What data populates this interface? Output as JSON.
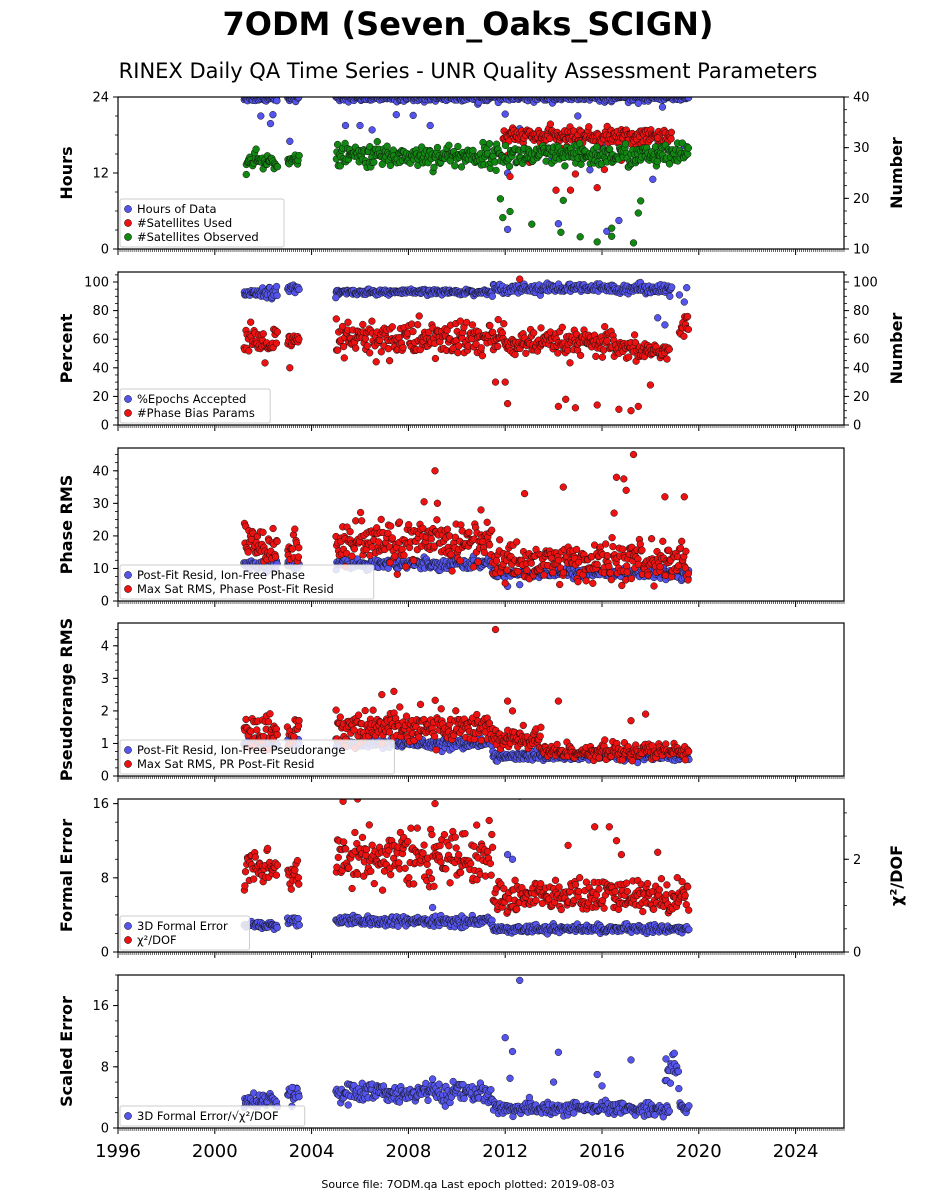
{
  "title": "7ODM (Seven_Oaks_SCIGN)",
  "subtitle": "RINEX Daily QA Time Series - UNR Quality Assessment Parameters",
  "footer": "Source file: 7ODM.qa Last epoch plotted: 2019-08-03",
  "colors": {
    "blue": "#5555ee",
    "red": "#ee1111",
    "green": "#118811",
    "edge": "#111111"
  },
  "x_axis": {
    "range": [
      1996,
      2026
    ],
    "ticks": [
      1996,
      2000,
      2004,
      2008,
      2012,
      2016,
      2020,
      2024
    ],
    "tick_labels": [
      "1996",
      "2000",
      "2004",
      "2008",
      "2012",
      "2016",
      "2020",
      "2024"
    ]
  },
  "chart_data": [
    {
      "type": "scatter",
      "ylabel": "Hours",
      "ylabel_right": "Number",
      "ylim": [
        0,
        24
      ],
      "yticks": [
        0,
        12,
        24
      ],
      "ytick_labels": [
        "0",
        "12",
        "24"
      ],
      "ylim_right": [
        10,
        40
      ],
      "yticks_right": [
        10,
        20,
        30,
        40
      ],
      "ytick_labels_right": [
        "10",
        "20",
        "30",
        "40"
      ],
      "legend_position": "lower-left",
      "series": [
        {
          "name": "Hours of Data",
          "color": "blue",
          "axis": "left",
          "segments": [
            [
              2001.2,
              2002.6,
              23.9,
              0.3
            ],
            [
              2003.0,
              2003.5,
              24.0,
              0.3
            ],
            [
              2005.0,
              2019.6,
              23.9,
              0.3
            ]
          ],
          "points": [
            [
              2001.9,
              21.0
            ],
            [
              2002.3,
              19.8
            ],
            [
              2002.4,
              21.2
            ],
            [
              2003.1,
              17.0
            ],
            [
              2005.4,
              19.5
            ],
            [
              2006.0,
              19.5
            ],
            [
              2006.5,
              18.8
            ],
            [
              2006.8,
              15.7
            ],
            [
              2007.5,
              21.2
            ],
            [
              2008.2,
              21.1
            ],
            [
              2008.9,
              19.5
            ],
            [
              2011.7,
              15.2
            ],
            [
              2012.0,
              21.3
            ],
            [
              2012.1,
              12.0
            ],
            [
              2012.1,
              3.1
            ],
            [
              2012.3,
              18.5
            ],
            [
              2012.6,
              19.0
            ],
            [
              2013.9,
              14.0
            ],
            [
              2014.2,
              4.0
            ],
            [
              2014.6,
              18.5
            ],
            [
              2015.0,
              21.0
            ],
            [
              2015.5,
              12.5
            ],
            [
              2016.0,
              16.2
            ],
            [
              2016.2,
              2.8
            ],
            [
              2016.7,
              4.5
            ],
            [
              2017.5,
              23.0
            ],
            [
              2018.1,
              11.0
            ],
            [
              2018.5,
              22.4
            ],
            [
              2019.4,
              16.3
            ]
          ]
        },
        {
          "name": "#Satellites Used",
          "color": "red",
          "axis": "right",
          "segments": [
            [
              2011.9,
              2018.9,
              32.2,
              0.8
            ]
          ],
          "points": [
            [
              2012.1,
              28.5
            ],
            [
              2012.2,
              24.3
            ],
            [
              2013.0,
              27.1
            ],
            [
              2014.1,
              21.6
            ],
            [
              2014.3,
              29.9
            ],
            [
              2014.7,
              21.6
            ],
            [
              2014.9,
              24.8
            ],
            [
              2015.8,
              22.1
            ],
            [
              2016.1,
              25.7
            ],
            [
              2016.3,
              27.8
            ],
            [
              2016.8,
              27.5
            ],
            [
              2017.4,
              30.1
            ],
            [
              2018.3,
              31.9
            ]
          ]
        },
        {
          "name": "#Satellites Observed",
          "color": "green",
          "axis": "right",
          "segments": [
            [
              2001.3,
              2002.6,
              27.2,
              0.8
            ],
            [
              2003.0,
              2003.5,
              27.6,
              0.4
            ],
            [
              2005.0,
              2019.6,
              28.4,
              1.1
            ]
          ],
          "points": [
            [
              2001.3,
              24.7
            ],
            [
              2011.8,
              19.9
            ],
            [
              2011.9,
              16.2
            ],
            [
              2012.2,
              17.4
            ],
            [
              2013.1,
              14.9
            ],
            [
              2014.3,
              13.3
            ],
            [
              2014.4,
              19.6
            ],
            [
              2015.1,
              12.4
            ],
            [
              2015.8,
              11.4
            ],
            [
              2016.4,
              12.5
            ],
            [
              2016.4,
              14.1
            ],
            [
              2017.3,
              11.2
            ],
            [
              2017.5,
              17.1
            ],
            [
              2017.6,
              19.5
            ]
          ]
        }
      ]
    },
    {
      "type": "scatter",
      "ylabel": "Percent",
      "ylabel_right": "Number",
      "ylim": [
        0,
        107
      ],
      "yticks": [
        0,
        20,
        40,
        60,
        80,
        100
      ],
      "ytick_labels": [
        "0",
        "20",
        "40",
        "60",
        "80",
        "100"
      ],
      "ylim_right": [
        0,
        107
      ],
      "yticks_right": [
        0,
        20,
        40,
        60,
        80,
        100
      ],
      "ytick_labels_right": [
        "0",
        "20",
        "40",
        "60",
        "80",
        "100"
      ],
      "legend_position": "lower-left",
      "series": [
        {
          "name": "%Epochs Accepted",
          "color": "blue",
          "axis": "left",
          "segments": [
            [
              2001.2,
              2002.6,
              93,
              1.8
            ],
            [
              2003.0,
              2003.5,
              95,
              1.5
            ],
            [
              2005.0,
              2011.5,
              93,
              0.9
            ],
            [
              2011.5,
              2018.9,
              95.5,
              1.6
            ]
          ],
          "points": [
            [
              2005.0,
              89.0
            ],
            [
              2018.3,
              75.0
            ],
            [
              2018.6,
              70.0
            ],
            [
              2019.2,
              91.0
            ],
            [
              2019.4,
              86.0
            ],
            [
              2019.5,
              96.0
            ],
            [
              2018.8,
              90.0
            ]
          ]
        },
        {
          "name": "#Phase Bias Params",
          "color": "red",
          "axis": "right",
          "segments": [
            [
              2001.2,
              2002.6,
              57,
              5.5
            ],
            [
              2003.0,
              2003.5,
              57,
              5
            ],
            [
              2005.0,
              2012.0,
              60,
              6.5
            ],
            [
              2012.0,
              2016.5,
              57,
              4.5
            ],
            [
              2016.5,
              2018.8,
              52,
              3.5
            ],
            [
              2019.2,
              2019.6,
              68,
              9
            ]
          ],
          "points": [
            [
              2003.1,
              40.0
            ],
            [
              2012.6,
              102.0
            ],
            [
              2012.1,
              15.0
            ],
            [
              2012.0,
              30.0
            ],
            [
              2014.2,
              13.0
            ],
            [
              2014.5,
              18.0
            ],
            [
              2014.9,
              12.0
            ],
            [
              2015.8,
              14.0
            ],
            [
              2016.7,
              11.0
            ],
            [
              2017.2,
              10.0
            ],
            [
              2017.5,
              13.0
            ],
            [
              2018.0,
              28.0
            ],
            [
              2011.6,
              30.0
            ]
          ]
        }
      ]
    },
    {
      "type": "scatter",
      "ylabel": "Phase RMS",
      "ylim": [
        0,
        47
      ],
      "yticks": [
        0,
        10,
        20,
        30,
        40
      ],
      "ytick_labels": [
        "0",
        "10",
        "20",
        "30",
        "40"
      ],
      "legend_position": "lower-left",
      "series": [
        {
          "name": "Post-Fit Resid, Ion-Free Phase",
          "color": "blue",
          "axis": "left",
          "segments": [
            [
              2001.2,
              2002.6,
              11,
              0.7
            ],
            [
              2003.0,
              2003.5,
              11,
              0.6
            ],
            [
              2005.0,
              2011.5,
              11.5,
              0.8
            ],
            [
              2011.5,
              2019.6,
              8.7,
              0.8
            ]
          ],
          "points": [
            [
              2012.6,
              5.0
            ],
            [
              2012.1,
              4.5
            ]
          ]
        },
        {
          "name": "Max Sat RMS, Phase Post-Fit Resid",
          "color": "red",
          "axis": "left",
          "segments": [
            [
              2001.2,
              2002.6,
              17.5,
              3.0
            ],
            [
              2003.0,
              2003.5,
              16.0,
              2.5
            ],
            [
              2005.0,
              2011.5,
              18.0,
              3.5
            ],
            [
              2011.5,
              2019.6,
              12.0,
              3.0
            ]
          ],
          "points": [
            [
              2009.1,
              40.0
            ],
            [
              2017.3,
              45.0
            ],
            [
              2016.6,
              38.0
            ],
            [
              2016.9,
              37.5
            ],
            [
              2014.4,
              35.0
            ],
            [
              2017.0,
              34.0
            ],
            [
              2018.6,
              32.0
            ],
            [
              2019.4,
              32.0
            ],
            [
              2012.8,
              33.0
            ],
            [
              2009.2,
              30.0
            ],
            [
              2016.5,
              27.0
            ],
            [
              2011.0,
              28.0
            ]
          ]
        }
      ]
    },
    {
      "type": "scatter",
      "ylabel": "Pseudorange RMS",
      "ylim": [
        0,
        4.7
      ],
      "yticks": [
        0,
        1,
        2,
        3,
        4
      ],
      "ytick_labels": [
        "0",
        "1",
        "2",
        "3",
        "4"
      ],
      "legend_position": "lower-left",
      "series": [
        {
          "name": "Post-Fit Resid, Ion-Free Pseudorange",
          "color": "blue",
          "axis": "left",
          "segments": [
            [
              2001.2,
              2002.6,
              1.0,
              0.08
            ],
            [
              2003.0,
              2003.5,
              1.0,
              0.08
            ],
            [
              2005.0,
              2011.5,
              1.0,
              0.08
            ],
            [
              2011.5,
              2019.6,
              0.6,
              0.06
            ]
          ],
          "points": []
        },
        {
          "name": "Max Sat RMS, PR Post-Fit Resid",
          "color": "red",
          "axis": "left",
          "segments": [
            [
              2001.2,
              2002.6,
              1.35,
              0.3
            ],
            [
              2003.0,
              2003.5,
              1.4,
              0.25
            ],
            [
              2005.0,
              2011.5,
              1.5,
              0.25
            ],
            [
              2011.5,
              2013.5,
              1.1,
              0.2
            ],
            [
              2013.5,
              2019.6,
              0.75,
              0.12
            ]
          ],
          "points": [
            [
              2011.6,
              4.5
            ],
            [
              2007.4,
              2.6
            ],
            [
              2006.9,
              2.5
            ],
            [
              2012.1,
              2.3
            ],
            [
              2014.2,
              2.3
            ],
            [
              2008.5,
              2.2
            ],
            [
              2012.3,
              2.0
            ],
            [
              2017.8,
              1.9
            ],
            [
              2017.2,
              1.7
            ]
          ]
        }
      ]
    },
    {
      "type": "scatter",
      "ylabel": "Formal Error",
      "ylabel_right": "χ²/DOF",
      "ylim": [
        0,
        16.5
      ],
      "yticks": [
        0,
        8,
        16
      ],
      "ytick_labels": [
        "0",
        "8",
        "16"
      ],
      "ylim_right": [
        0,
        3.3
      ],
      "yticks_right": [
        0,
        2
      ],
      "ytick_labels_right": [
        "0",
        "2"
      ],
      "legend_position": "lower-left",
      "series": [
        {
          "name": "3D Formal Error",
          "color": "blue",
          "axis": "left",
          "segments": [
            [
              2001.2,
              2002.6,
              2.9,
              0.2
            ],
            [
              2003.0,
              2003.5,
              3.4,
              0.25
            ],
            [
              2005.0,
              2011.5,
              3.3,
              0.25
            ],
            [
              2011.5,
              2019.6,
              2.5,
              0.2
            ]
          ],
          "points": [
            [
              2012.6,
              16.8
            ],
            [
              2012.1,
              10.5
            ],
            [
              2012.3,
              10.0
            ],
            [
              2009.0,
              4.8
            ]
          ]
        },
        {
          "name": "χ²/DOF",
          "color": "red",
          "axis": "right",
          "segments": [
            [
              2001.2,
              2002.6,
              1.8,
              0.22
            ],
            [
              2003.0,
              2003.5,
              1.7,
              0.2
            ],
            [
              2005.0,
              2011.5,
              2.05,
              0.28
            ],
            [
              2011.5,
              2019.6,
              1.2,
              0.18
            ]
          ],
          "points": [
            [
              2005.3,
              3.25
            ],
            [
              2005.9,
              3.3
            ],
            [
              2009.1,
              3.2
            ],
            [
              2015.7,
              2.7
            ],
            [
              2016.3,
              2.7
            ],
            [
              2014.6,
              2.3
            ],
            [
              2016.6,
              2.4
            ],
            [
              2018.3,
              2.15
            ],
            [
              2016.8,
              2.1
            ]
          ]
        }
      ]
    },
    {
      "type": "scatter",
      "ylabel": "Scaled Error",
      "ylim": [
        0,
        20
      ],
      "yticks": [
        0,
        8,
        16
      ],
      "ytick_labels": [
        "0",
        "8",
        "16"
      ],
      "legend_position": "lower-left",
      "series": [
        {
          "name": "3D Formal Error/√χ²/DOF",
          "color": "blue",
          "axis": "left",
          "segments": [
            [
              2001.2,
              2002.6,
              3.6,
              0.5
            ],
            [
              2003.0,
              2003.5,
              4.6,
              0.6
            ],
            [
              2005.0,
              2011.5,
              4.6,
              0.6
            ],
            [
              2011.5,
              2018.8,
              2.5,
              0.4
            ],
            [
              2018.6,
              2019.2,
              7.5,
              1.2
            ],
            [
              2019.2,
              2019.6,
              2.6,
              0.4
            ]
          ],
          "points": [
            [
              2012.6,
              19.3
            ],
            [
              2012.0,
              11.8
            ],
            [
              2012.3,
              10.0
            ],
            [
              2012.2,
              6.5
            ],
            [
              2014.2,
              9.9
            ],
            [
              2014.0,
              6.0
            ],
            [
              2017.2,
              8.9
            ],
            [
              2015.8,
              7.0
            ],
            [
              2016.0,
              5.5
            ],
            [
              2003.2,
              5.3
            ],
            [
              2009.0,
              6.4
            ],
            [
              2013.0,
              4.0
            ]
          ]
        }
      ]
    }
  ]
}
